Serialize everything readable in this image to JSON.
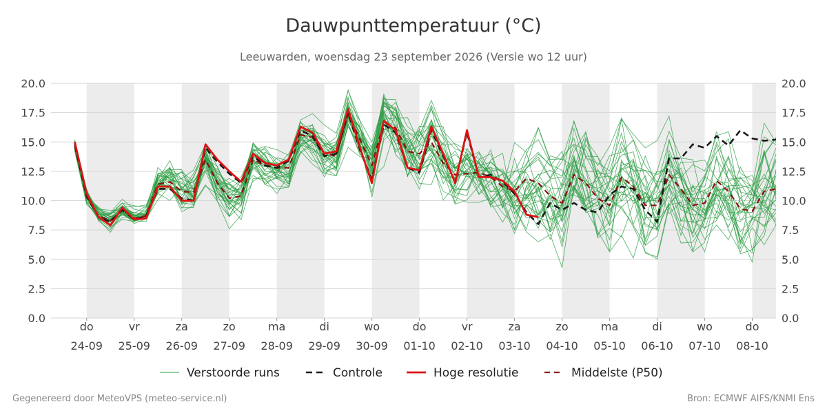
{
  "header": {
    "title": "Dauwpunttemperatuur (°C)",
    "subtitle": "Leeuwarden, woensdag 23 september 2026 (Versie wo 12 uur)"
  },
  "footer": {
    "left": "Gegenereerd door MeteoVPS (meteo-service.nl)",
    "right": "Bron: ECMWF AIFS/KNMI Ens"
  },
  "colors": {
    "ensemble": "#2e9e44",
    "control": "#1a1a1a",
    "high_res": "#dd1111",
    "median": "#8b1010",
    "weekend_band": "#ececec"
  },
  "chart_data": {
    "type": "line",
    "title": "Dauwpunttemperatuur (°C)",
    "ylim": [
      0,
      20
    ],
    "y_ticks": [
      "0.0",
      "2.5",
      "5.0",
      "7.5",
      "10.0",
      "12.5",
      "15.0",
      "17.5",
      "20.0"
    ],
    "x_days": [
      {
        "day": "do",
        "date": "24-09"
      },
      {
        "day": "vr",
        "date": "25-09"
      },
      {
        "day": "za",
        "date": "26-09"
      },
      {
        "day": "zo",
        "date": "27-09"
      },
      {
        "day": "ma",
        "date": "28-09"
      },
      {
        "day": "di",
        "date": "29-09"
      },
      {
        "day": "wo",
        "date": "30-09"
      },
      {
        "day": "do",
        "date": "01-10"
      },
      {
        "day": "vr",
        "date": "02-10"
      },
      {
        "day": "za",
        "date": "03-10"
      },
      {
        "day": "zo",
        "date": "04-10"
      },
      {
        "day": "ma",
        "date": "05-10"
      },
      {
        "day": "di",
        "date": "06-10"
      },
      {
        "day": "wo",
        "date": "07-10"
      },
      {
        "day": "do",
        "date": "08-10"
      }
    ],
    "x_unit": "days after 24-09 00:00",
    "x_range": [
      -0.75,
      14.5
    ],
    "shaded_days": [
      0,
      2,
      4,
      6,
      8,
      10,
      12,
      14
    ],
    "legend": [
      "Verstoorde runs",
      "Controle",
      "Hoge resolutie",
      "Middelste (P50)"
    ],
    "legend_position": "bottom",
    "series": [
      {
        "name": "Hoge resolutie",
        "style": "solid-red",
        "x": [
          -0.25,
          0,
          0.25,
          0.5,
          0.75,
          1,
          1.25,
          1.5,
          1.75,
          2,
          2.25,
          2.5,
          2.75,
          3,
          3.25,
          3.5,
          3.75,
          4,
          4.25,
          4.5,
          4.75,
          5,
          5.25,
          5.5,
          5.75,
          6,
          6.25,
          6.5,
          6.75,
          7,
          7.25,
          7.5,
          7.75,
          8,
          8.25,
          8.5,
          8.75,
          9,
          9.25,
          9.5
        ],
        "y": [
          15.0,
          10.6,
          8.6,
          7.9,
          9.4,
          8.4,
          8.5,
          11.2,
          11.2,
          10.0,
          10.0,
          14.8,
          13.5,
          12.5,
          11.6,
          14.0,
          13.2,
          13.0,
          13.5,
          16.3,
          15.8,
          14.0,
          14.2,
          17.8,
          14.5,
          11.5,
          16.8,
          16.0,
          12.8,
          12.6,
          16.3,
          14.0,
          11.5,
          16.0,
          12.0,
          12.0,
          11.7,
          10.8,
          8.8,
          8.6
        ]
      },
      {
        "name": "Controle",
        "style": "dashed-black",
        "x": [
          -0.25,
          0,
          0.25,
          0.5,
          0.75,
          1,
          1.25,
          1.5,
          1.75,
          2,
          2.25,
          2.5,
          2.75,
          3,
          3.25,
          3.5,
          3.75,
          4,
          4.25,
          4.5,
          4.75,
          5,
          5.25,
          5.5,
          5.75,
          6,
          6.25,
          6.5,
          6.75,
          7,
          7.25,
          7.5,
          7.75,
          8,
          8.25,
          8.5,
          8.75,
          9,
          9.25,
          9.5,
          9.75,
          10,
          10.25,
          10.5,
          10.75,
          11,
          11.25,
          11.5,
          11.75,
          12,
          12.25,
          12.5,
          12.75,
          13,
          13.25,
          13.5,
          13.75,
          14,
          14.25,
          14.5
        ],
        "y": [
          14.8,
          10.4,
          8.6,
          8.2,
          9.2,
          8.4,
          8.7,
          11.0,
          11.0,
          10.2,
          10.0,
          14.5,
          13.3,
          12.3,
          11.5,
          13.8,
          13.0,
          12.8,
          13.4,
          16.0,
          15.5,
          13.8,
          14.0,
          17.5,
          14.3,
          11.8,
          16.5,
          15.8,
          12.8,
          12.4,
          16.0,
          13.8,
          11.6,
          15.8,
          12.0,
          12.2,
          11.6,
          10.6,
          9.0,
          8.0,
          9.8,
          9.2,
          9.8,
          9.2,
          9.0,
          10.5,
          11.2,
          11.0,
          9.2,
          8.2,
          13.6,
          13.6,
          14.8,
          14.5,
          15.5,
          14.7,
          16.0,
          15.3,
          15.1,
          15.2
        ]
      },
      {
        "name": "Middelste (P50)",
        "style": "dashed-darkred",
        "x": [
          -0.25,
          0,
          0.25,
          0.5,
          0.75,
          1,
          1.25,
          1.5,
          1.75,
          2,
          2.25,
          2.5,
          2.75,
          3,
          3.25,
          3.5,
          3.75,
          4,
          4.25,
          4.5,
          4.75,
          5,
          5.25,
          5.5,
          5.75,
          6,
          6.25,
          6.5,
          6.75,
          7,
          7.25,
          7.5,
          7.75,
          8,
          8.25,
          8.5,
          8.75,
          9,
          9.25,
          9.5,
          9.75,
          10,
          10.25,
          10.5,
          10.75,
          11,
          11.25,
          11.5,
          11.75,
          12,
          12.25,
          12.5,
          12.75,
          13,
          13.25,
          13.5,
          13.75,
          14,
          14.25,
          14.5
        ],
        "y": [
          14.6,
          10.3,
          8.7,
          8.3,
          9.2,
          8.5,
          8.7,
          11.4,
          11.6,
          10.8,
          10.7,
          13.5,
          11.5,
          10.2,
          10.4,
          13.5,
          13.0,
          12.8,
          12.8,
          15.6,
          15.4,
          14.0,
          13.8,
          17.4,
          15.2,
          13.0,
          16.7,
          16.2,
          14.2,
          14.0,
          15.0,
          13.2,
          12.2,
          12.3,
          12.4,
          12.0,
          11.2,
          10.8,
          11.9,
          11.5,
          10.4,
          9.8,
          12.2,
          11.5,
          10.2,
          9.6,
          12.0,
          11.2,
          9.6,
          9.6,
          12.2,
          11.0,
          9.6,
          9.8,
          11.7,
          10.8,
          9.3,
          9.1,
          10.8,
          11.0
        ]
      }
    ],
    "ensemble_member_count": 30
  }
}
